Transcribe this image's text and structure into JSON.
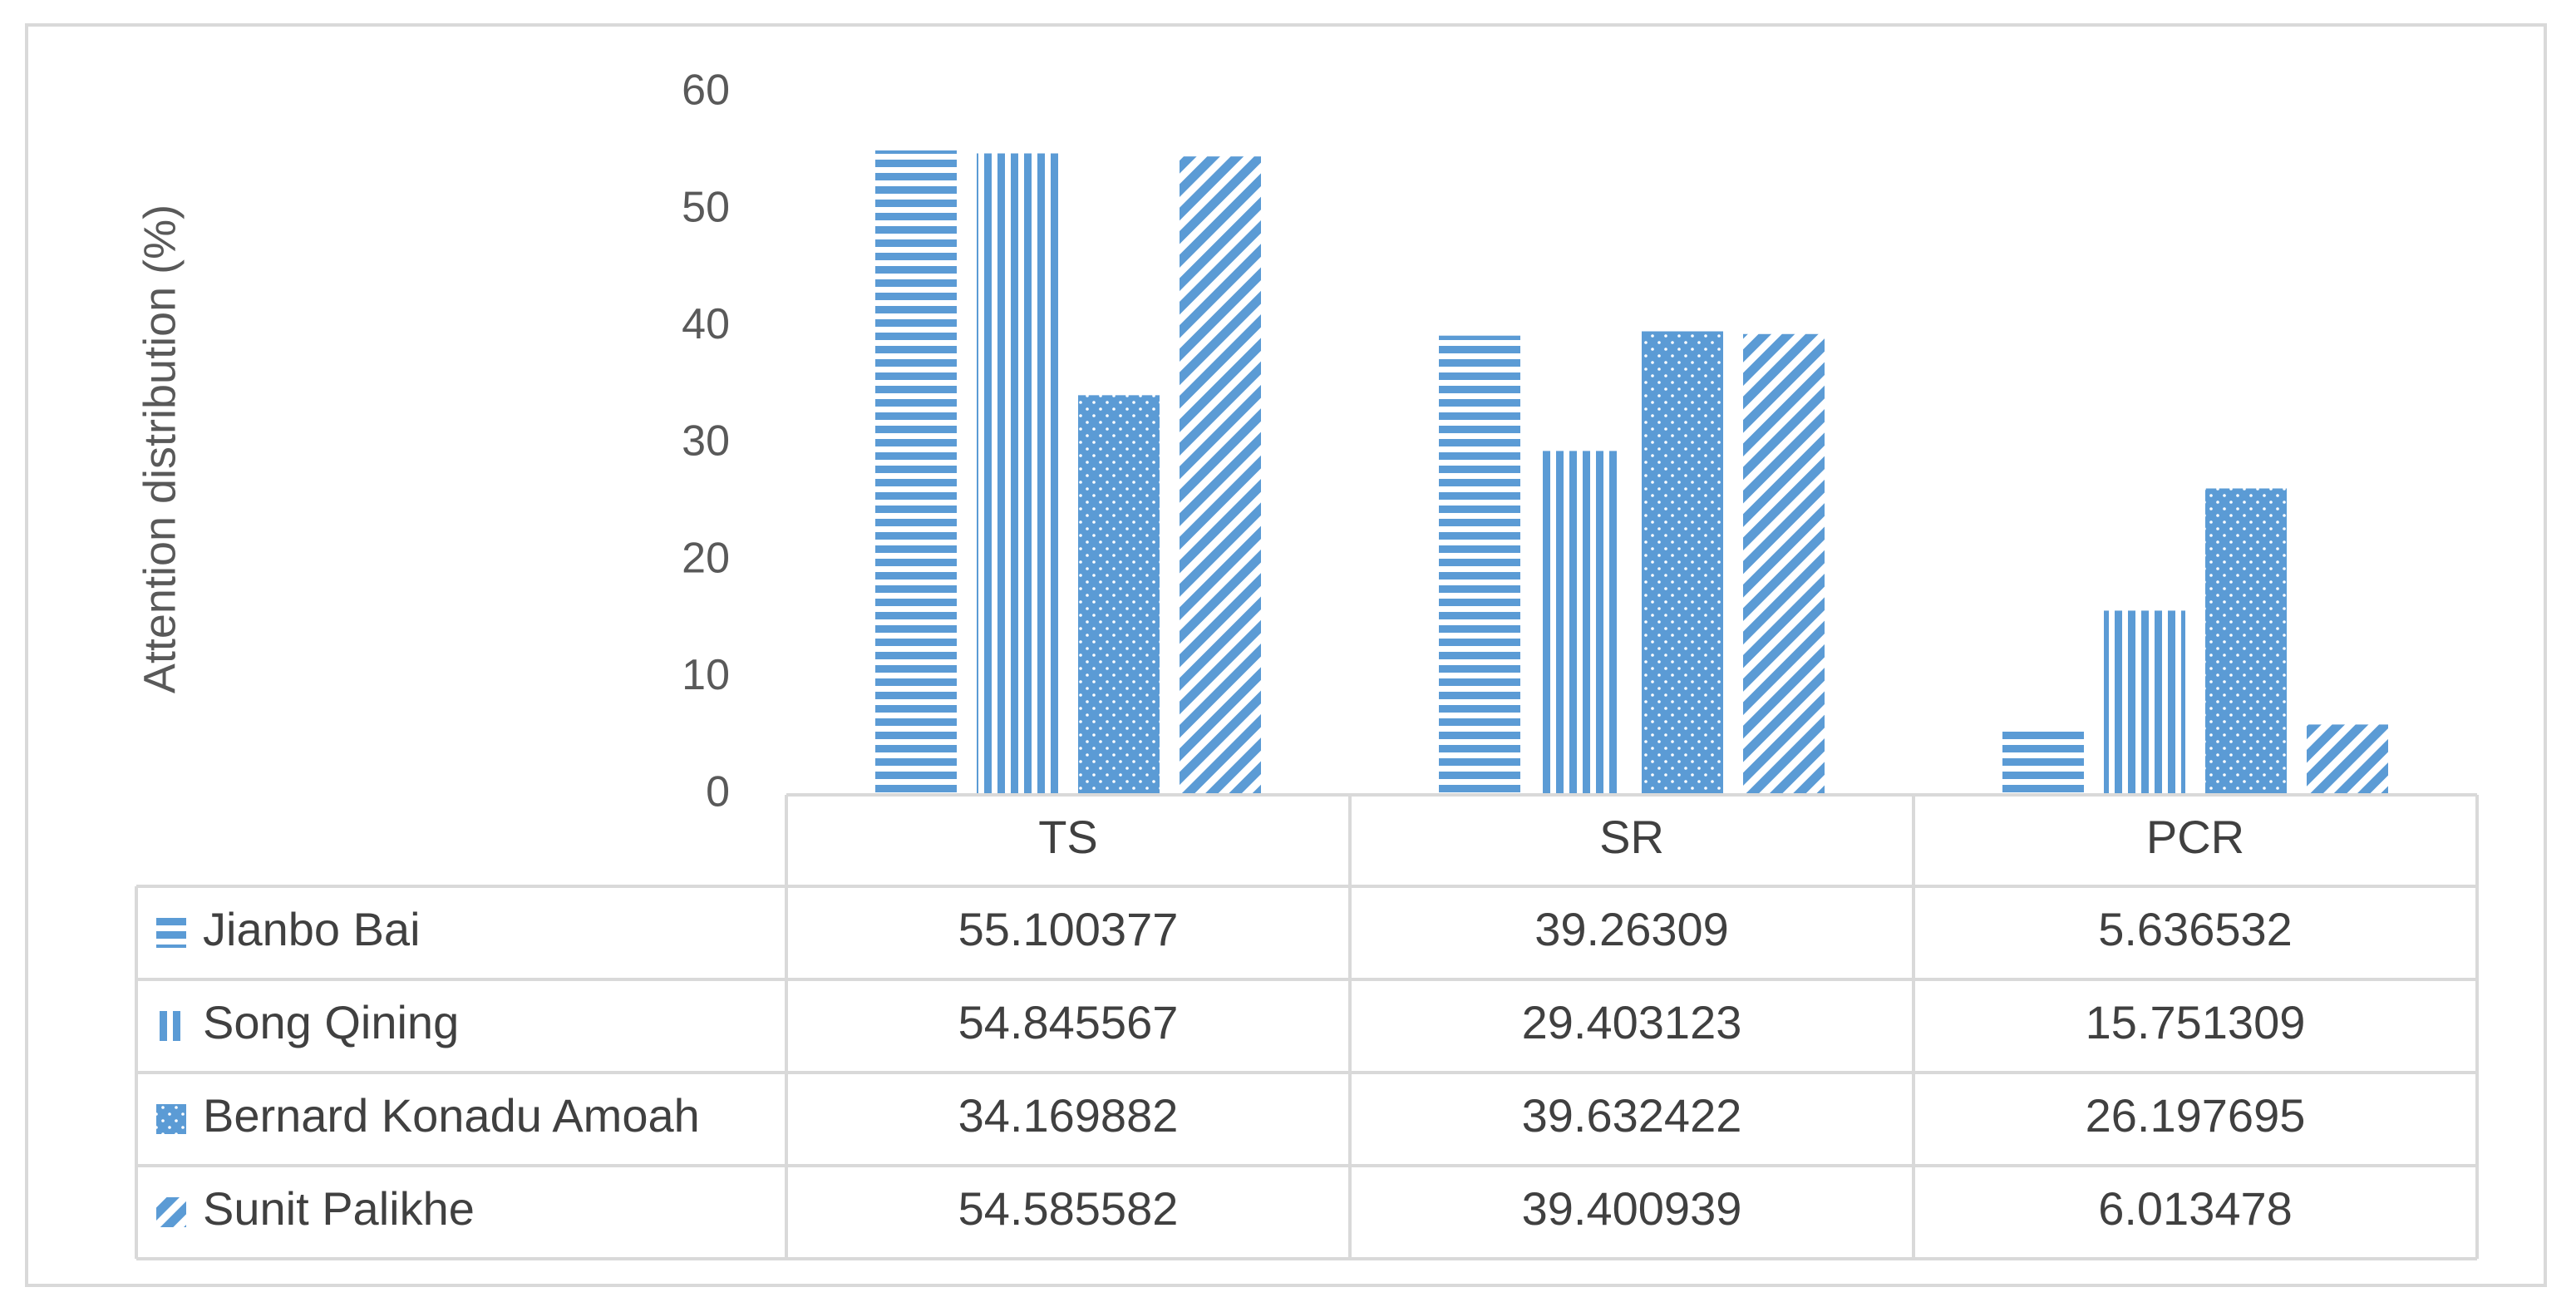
{
  "chart_data": {
    "type": "bar",
    "title": "",
    "xlabel": "",
    "ylabel": "Attention distribution (%)",
    "ylim": [
      0,
      60
    ],
    "yticks": [
      0,
      10,
      20,
      30,
      40,
      50,
      60
    ],
    "grid": false,
    "legend": "data-table",
    "categories": [
      "TS",
      "SR",
      "PCR"
    ],
    "series": [
      {
        "name": "Jianbo Bai",
        "pattern": "horizontal-stripes",
        "values": [
          55.100377,
          39.26309,
          5.636532
        ],
        "labels": [
          "55.100377",
          "39.26309",
          "5.636532"
        ]
      },
      {
        "name": "Song Qining",
        "pattern": "vertical-stripes",
        "values": [
          54.845567,
          29.403123,
          15.751309
        ],
        "labels": [
          "54.845567",
          "29.403123",
          "15.751309"
        ]
      },
      {
        "name": "Bernard Konadu Amoah",
        "pattern": "dots",
        "values": [
          34.169882,
          39.632422,
          26.197695
        ],
        "labels": [
          "34.169882",
          "39.632422",
          "26.197695"
        ]
      },
      {
        "name": "Sunit Palikhe",
        "pattern": "diagonal-stripes",
        "values": [
          54.585582,
          39.400939,
          6.013478
        ],
        "labels": [
          "54.585582",
          "39.400939",
          "6.013478"
        ]
      }
    ],
    "colors": {
      "bar": "#5b9bd5",
      "text": "#404040",
      "axis_text": "#595959",
      "grid": "#d9d9d9"
    }
  }
}
